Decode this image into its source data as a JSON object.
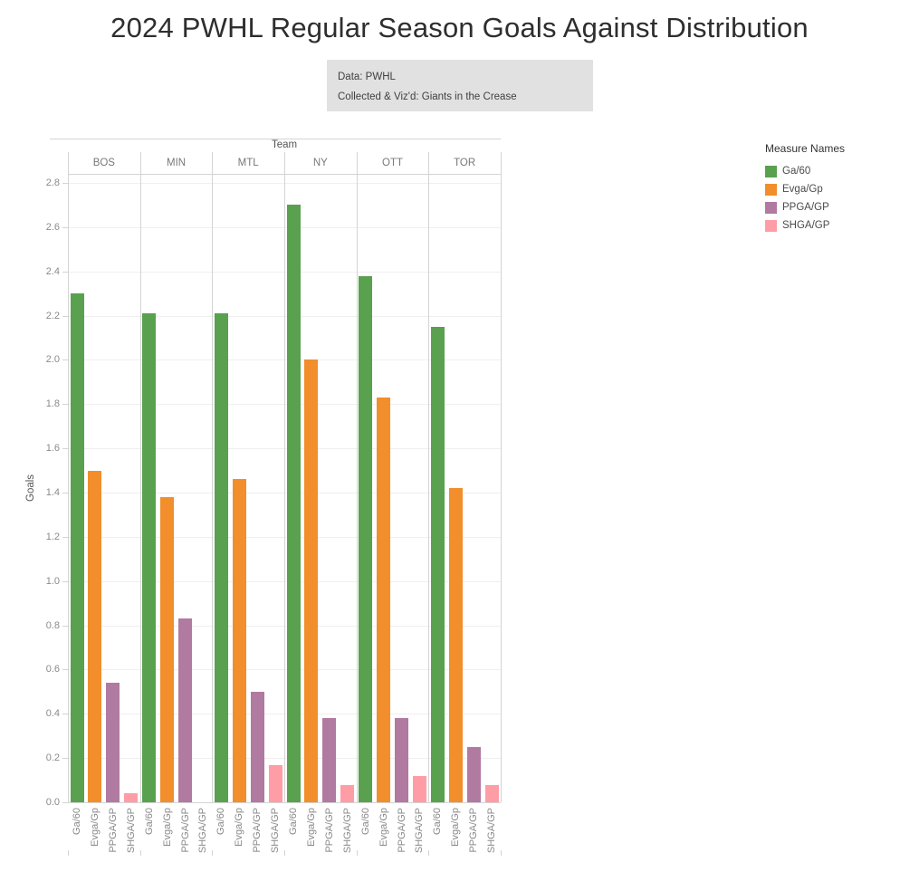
{
  "title": "2024 PWHL Regular Season Goals Against Distribution",
  "caption": {
    "line1": "Data: PWHL",
    "line2": "Collected & Viz'd: Giants in the Crease"
  },
  "chart_data": {
    "type": "bar",
    "title": "2024 PWHL Regular Season Goals Against Distribution",
    "col_field_label": "Team",
    "categories": [
      "BOS",
      "MIN",
      "MTL",
      "NY",
      "OTT",
      "TOR"
    ],
    "series": [
      {
        "name": "Ga/60",
        "color": "#59A14F",
        "values": [
          2.3,
          2.21,
          2.21,
          2.7,
          2.38,
          2.15
        ]
      },
      {
        "name": "Evga/Gp",
        "color": "#F28E2B",
        "values": [
          1.5,
          1.38,
          1.46,
          2.0,
          1.83,
          1.42
        ]
      },
      {
        "name": "PPGA/GP",
        "color": "#B07AA1",
        "values": [
          0.54,
          0.83,
          0.5,
          0.38,
          0.38,
          0.25
        ]
      },
      {
        "name": "SHGA/GP",
        "color": "#FF9DA7",
        "values": [
          0.04,
          0.0,
          0.17,
          0.08,
          0.12,
          0.08
        ]
      }
    ],
    "xlabel": "",
    "ylabel": "Goals",
    "ylim": [
      0,
      2.8
    ],
    "yticks": [
      "0.0",
      "0.2",
      "0.4",
      "0.6",
      "0.8",
      "1.0",
      "1.2",
      "1.4",
      "1.6",
      "1.8",
      "2.0",
      "2.2",
      "2.4",
      "2.6",
      "2.8"
    ],
    "grid": true,
    "legend_title": "Measure Names",
    "legend_position": "right"
  }
}
